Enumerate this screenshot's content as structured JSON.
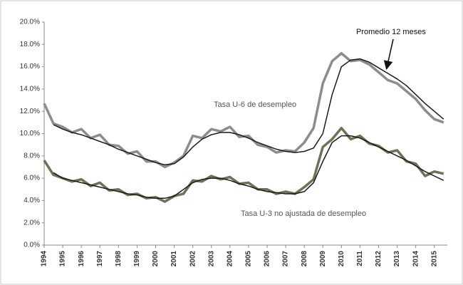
{
  "chart_data": {
    "type": "line",
    "x": [
      1994,
      1994.5,
      1995,
      1995.5,
      1996,
      1996.5,
      1997,
      1997.5,
      1998,
      1998.5,
      1999,
      1999.5,
      2000,
      2000.5,
      2001,
      2001.5,
      2002,
      2002.5,
      2003,
      2003.5,
      2004,
      2004.5,
      2005,
      2005.5,
      2006,
      2006.5,
      2007,
      2007.5,
      2008,
      2008.5,
      2009,
      2009.5,
      2010,
      2010.5,
      2011,
      2011.5,
      2012,
      2012.5,
      2013,
      2013.5,
      2014,
      2014.5,
      2015,
      2015.5
    ],
    "series": [
      {
        "name": "Tasa U-6 de desempleo",
        "color": "#8c8c8c",
        "values": [
          12.7,
          10.9,
          10.6,
          10.1,
          10.4,
          9.6,
          9.9,
          9.0,
          8.9,
          8.2,
          8.4,
          7.5,
          7.5,
          7.0,
          7.4,
          8.0,
          9.8,
          9.6,
          10.4,
          10.2,
          10.6,
          9.7,
          9.8,
          9.0,
          8.8,
          8.3,
          8.5,
          8.4,
          9.2,
          10.5,
          14.5,
          16.5,
          17.2,
          16.5,
          16.6,
          16.2,
          15.5,
          14.8,
          14.5,
          13.8,
          13.1,
          12.1,
          11.3,
          11.0
        ]
      },
      {
        "name": "Promedio 12 meses",
        "color": "#1a1a1a",
        "values": [
          null,
          10.8,
          10.4,
          10.1,
          9.9,
          9.6,
          9.3,
          9.0,
          8.6,
          8.3,
          8.0,
          7.7,
          7.4,
          7.2,
          7.3,
          7.9,
          8.8,
          9.5,
          9.9,
          10.1,
          10.1,
          9.9,
          9.6,
          9.2,
          8.9,
          8.6,
          8.4,
          8.3,
          8.4,
          8.7,
          10.0,
          13.5,
          16.0,
          16.6,
          16.7,
          16.4,
          15.9,
          15.4,
          14.9,
          14.3,
          13.5,
          12.7,
          12.0,
          11.3
        ]
      },
      {
        "name": "Tasa U-3 no ajustada de desempleo",
        "color": "#6b7354",
        "values": [
          7.6,
          6.3,
          6.0,
          5.7,
          5.9,
          5.3,
          5.6,
          4.9,
          5.0,
          4.5,
          4.6,
          4.2,
          4.3,
          3.9,
          4.4,
          4.6,
          5.8,
          5.7,
          6.2,
          5.9,
          6.1,
          5.5,
          5.6,
          5.0,
          5.0,
          4.6,
          4.8,
          4.6,
          5.2,
          5.9,
          8.8,
          9.5,
          10.5,
          9.5,
          9.8,
          9.1,
          8.9,
          8.3,
          8.5,
          7.5,
          7.3,
          6.2,
          6.6,
          6.4
        ]
      },
      {
        "color": "#1a1a1a",
        "values": [
          null,
          6.5,
          6.0,
          5.8,
          5.6,
          5.4,
          5.2,
          5.0,
          4.8,
          4.6,
          4.5,
          4.3,
          4.2,
          4.2,
          4.4,
          5.0,
          5.6,
          5.9,
          6.0,
          6.0,
          5.8,
          5.5,
          5.3,
          5.0,
          4.8,
          4.7,
          4.6,
          4.6,
          4.8,
          5.6,
          7.5,
          9.2,
          9.8,
          9.8,
          9.6,
          9.2,
          8.8,
          8.4,
          8.0,
          7.6,
          7.1,
          6.6,
          6.2,
          5.8
        ]
      }
    ],
    "xlim": [
      1994,
      2015.7
    ],
    "xticks": [
      1994,
      1995,
      1996,
      1997,
      1998,
      1999,
      2000,
      2001,
      2002,
      2003,
      2004,
      2005,
      2006,
      2007,
      2008,
      2009,
      2010,
      2011,
      2012,
      2013,
      2014,
      2015
    ],
    "ylim": [
      0,
      20
    ],
    "yticks": [
      {
        "value": 0,
        "label": "0.0%"
      },
      {
        "value": 2,
        "label": "2.0%"
      },
      {
        "value": 4,
        "label": "4.0%"
      },
      {
        "value": 6,
        "label": "6.0%"
      },
      {
        "value": 8,
        "label": "8.0%"
      },
      {
        "value": 10,
        "label": "10.0%"
      },
      {
        "value": 12,
        "label": "12.0%"
      },
      {
        "value": 14,
        "label": "14.0%"
      },
      {
        "value": 16,
        "label": "16.0%"
      },
      {
        "value": 18,
        "label": "18.0%"
      },
      {
        "value": 20,
        "label": "20.0%"
      }
    ],
    "grid": false
  }
}
